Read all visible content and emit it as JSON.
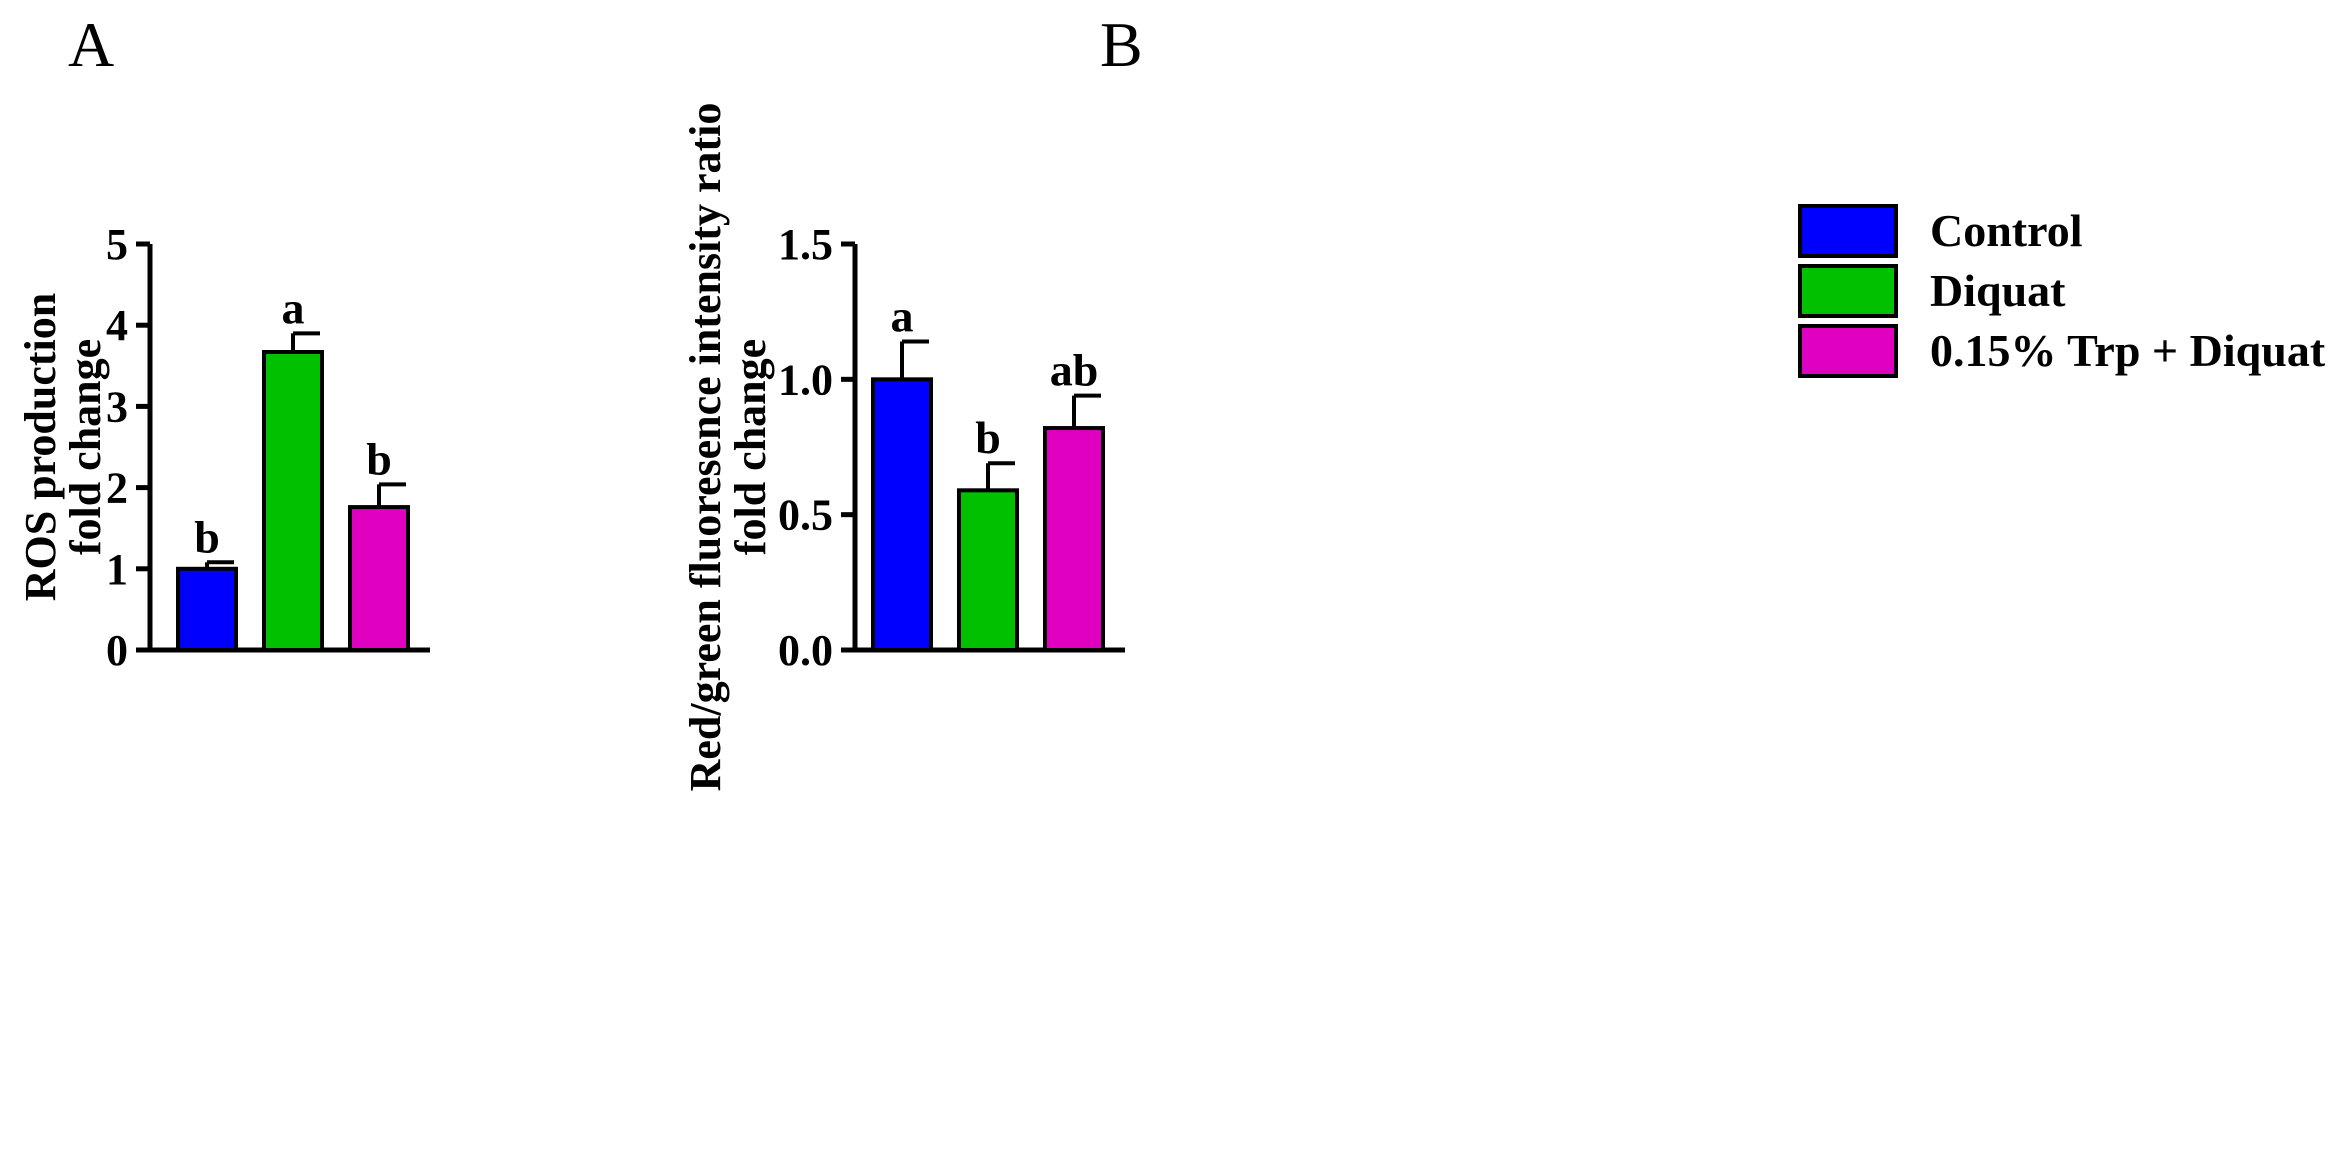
{
  "panels": {
    "a_label": "A",
    "b_label": "B"
  },
  "legend": {
    "items": [
      {
        "label": "Control",
        "color": "#0000ff"
      },
      {
        "label": "Diquat",
        "color": "#00c000"
      },
      {
        "label": "0.15% Trp + Diquat",
        "color": "#e000c0"
      }
    ]
  },
  "chart_data": [
    {
      "type": "bar",
      "panel": "A",
      "categories": [
        "Control",
        "Diquat",
        "0.15% Trp + Diquat"
      ],
      "values": [
        1.0,
        3.67,
        1.76
      ],
      "errors": [
        0.08,
        0.23,
        0.28
      ],
      "significance": [
        "b",
        "a",
        "b"
      ],
      "colors": [
        "#0000ff",
        "#00c000",
        "#e000c0"
      ],
      "ylabel_lines": [
        "ROS production",
        "fold change"
      ],
      "ylim": [
        0,
        5
      ],
      "yticks": [
        "0",
        "1",
        "2",
        "3",
        "4",
        "5"
      ],
      "ytick_values": [
        0,
        1,
        2,
        3,
        4,
        5
      ]
    },
    {
      "type": "bar",
      "panel": "B",
      "categories": [
        "Control",
        "Diquat",
        "0.15% Trp + Diquat"
      ],
      "values": [
        1.0,
        0.59,
        0.82
      ],
      "errors": [
        0.14,
        0.1,
        0.12
      ],
      "significance": [
        "a",
        "b",
        "ab"
      ],
      "colors": [
        "#0000ff",
        "#00c000",
        "#e000c0"
      ],
      "ylabel_lines": [
        "Red/green fluoresence intensity ratio",
        "fold change"
      ],
      "ylim": [
        0,
        1.5
      ],
      "yticks": [
        "0.0",
        "0.5",
        "1.0",
        "1.5"
      ],
      "ytick_values": [
        0,
        0.5,
        1.0,
        1.5
      ]
    }
  ]
}
